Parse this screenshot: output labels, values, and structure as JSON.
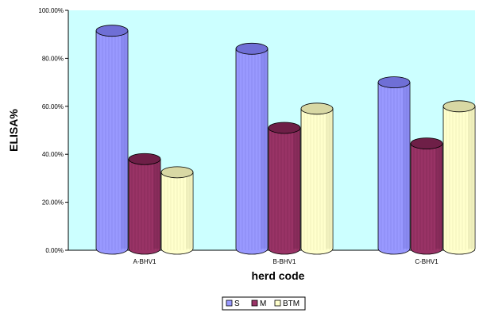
{
  "chart_data": {
    "type": "bar",
    "categories": [
      "A-BHV1",
      "B-BHV1",
      "C-BHV1"
    ],
    "series": [
      {
        "name": "S",
        "values": [
          91.5,
          84.0,
          70.0
        ],
        "color": "#9999ff",
        "shade": "#6f6fd6"
      },
      {
        "name": "M",
        "values": [
          38.0,
          51.0,
          44.5
        ],
        "color": "#993366",
        "shade": "#6e1f47"
      },
      {
        "name": "BTM",
        "values": [
          32.5,
          59.0,
          60.0
        ],
        "color": "#ffffcc",
        "shade": "#d8d8a4"
      }
    ],
    "ylim": [
      0,
      100
    ],
    "ytick_labels": [
      "0.00%",
      "20.00%",
      "40.00%",
      "60.00%",
      "80.00%",
      "100.00%"
    ],
    "ylabel": "ELISA%",
    "xlabel": "herd code",
    "plot_background": "#ccffff",
    "grid": false,
    "legend_position": "bottom"
  }
}
